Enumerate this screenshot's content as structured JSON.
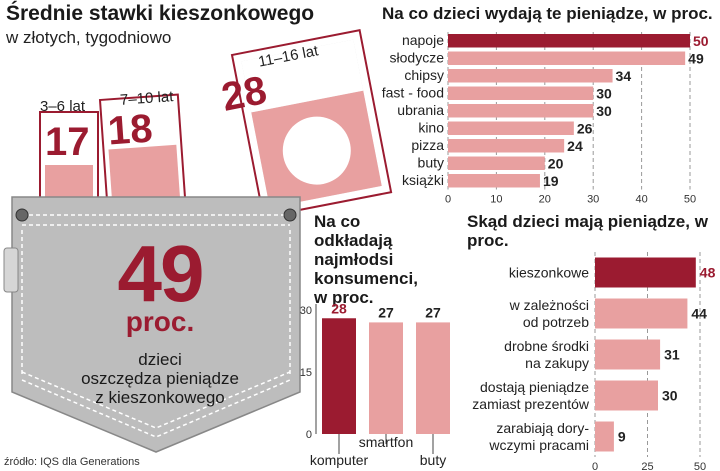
{
  "header": {
    "title": "Średnie stawki kieszonkowego",
    "subtitle": "w złotych, tygodniowo"
  },
  "cards": [
    {
      "age": "3–6 lat",
      "value": "17"
    },
    {
      "age": "7–10 lat",
      "value": "18"
    },
    {
      "age": "11–16 lat",
      "value": "28"
    }
  ],
  "pocket": {
    "big": "49",
    "unit": "proc.",
    "description": [
      "dzieci",
      "oszczędza pieniądze",
      "z kieszonkowego"
    ]
  },
  "source": "źródło: IQS dla Generations",
  "colors": {
    "dark": "#9b1b30",
    "light": "#e8a0a0",
    "pocket": "#bdbdbd"
  },
  "chart_data": [
    {
      "type": "bar",
      "orientation": "horizontal",
      "title": "Na co dzieci wydają te pieniądze, w proc.",
      "categories": [
        "napoje",
        "słodycze",
        "chipsy",
        "fast - food",
        "ubrania",
        "kino",
        "pizza",
        "buty",
        "książki"
      ],
      "values": [
        50,
        49,
        34,
        30,
        30,
        26,
        24,
        20,
        19
      ],
      "xlim": [
        0,
        50
      ],
      "ticks": [
        "0",
        "10",
        "20",
        "30",
        "40",
        "50"
      ],
      "grid": true
    },
    {
      "type": "bar",
      "title": "Na co odkładają najmłodsi konsumenci, w proc.",
      "categories": [
        "komputer",
        "smartfon",
        "buty"
      ],
      "values": [
        28,
        27,
        27
      ],
      "ylim": [
        0,
        30
      ],
      "ticks": [
        "0",
        "15",
        "30"
      ]
    },
    {
      "type": "bar",
      "orientation": "horizontal",
      "title": "Skąd dzieci mają pieniądze, w proc.",
      "categories": [
        [
          "kieszonkowe"
        ],
        [
          "w zależności",
          "od potrzeb"
        ],
        [
          "drobne środki",
          "na zakupy"
        ],
        [
          "dostają pieniądze",
          "zamiast prezentów"
        ],
        [
          "zarabiają dory-",
          "wczymi pracami"
        ]
      ],
      "values": [
        48,
        44,
        31,
        30,
        9
      ],
      "xlim": [
        0,
        50
      ],
      "ticks": [
        "0",
        "25",
        "50"
      ],
      "grid": true
    }
  ]
}
